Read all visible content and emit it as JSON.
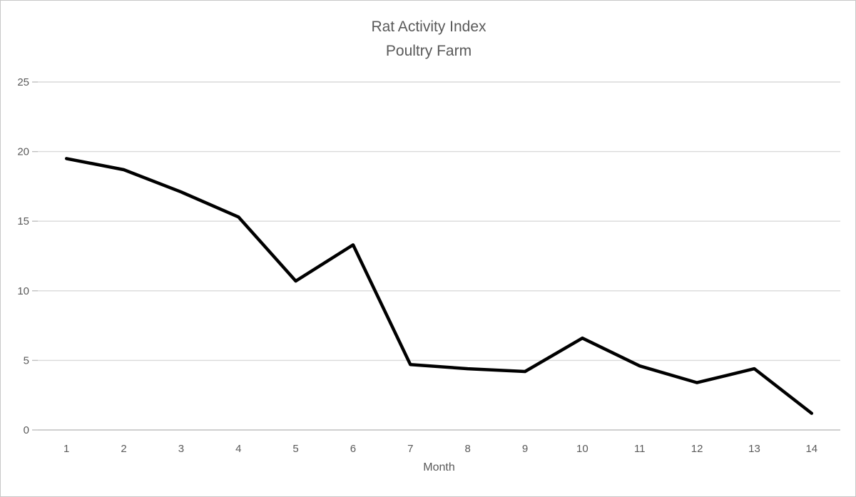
{
  "chart_data": {
    "type": "line",
    "title_line1": "Rat Activity Index",
    "title_line2": "Poultry Farm",
    "xlabel": "Month",
    "categories": [
      1,
      2,
      3,
      4,
      5,
      6,
      7,
      8,
      9,
      10,
      11,
      12,
      13,
      14
    ],
    "series": [
      {
        "name": "Rat Activity Index",
        "values": [
          19.5,
          18.7,
          17.1,
          15.3,
          10.7,
          13.3,
          4.7,
          4.4,
          4.2,
          6.6,
          4.6,
          3.4,
          4.4,
          1.2
        ]
      }
    ],
    "ylim": [
      0,
      25
    ],
    "yticks": [
      0,
      5,
      10,
      15,
      20,
      25
    ],
    "grid": "horizontal",
    "legend_position": "none",
    "colors": {
      "line": "#000000",
      "gridline": "#D9D9D9",
      "axis_line": "#BFBFBF",
      "text": "#595959",
      "border": "#C8C8C8",
      "background": "#FFFFFF"
    }
  }
}
